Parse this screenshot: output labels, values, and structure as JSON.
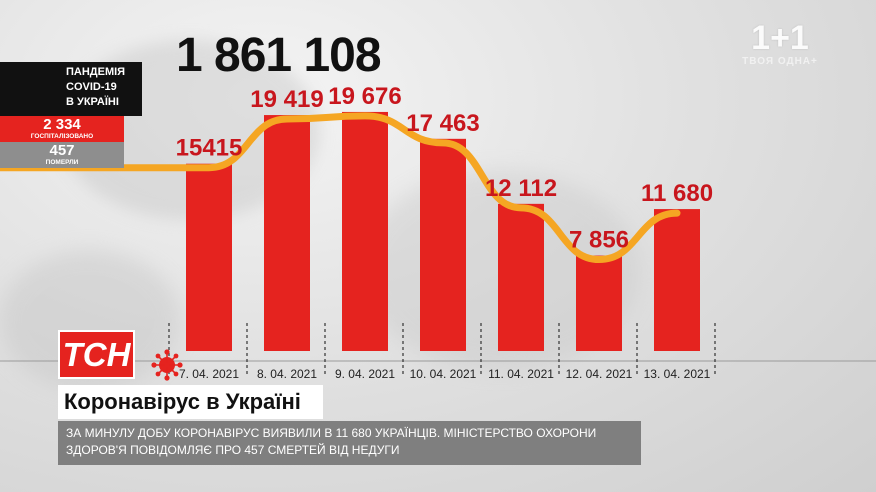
{
  "total_cases": "1 861 108",
  "channel_logo": {
    "main": "1+1",
    "sub": "ТВОЯ ОДНА+"
  },
  "panel": {
    "title_line1": "ПАНДЕМІЯ",
    "title_line2": "COVID-19",
    "title_line3": "В УКРАЇНІ",
    "hospitalized_value": "2 334",
    "hospitalized_label": "ГОСПІТАЛІЗОВАНО",
    "died_value": "457",
    "died_label": "ПОМЕРЛИ"
  },
  "news": {
    "logo": "ТСН",
    "headline": "Коронавірус в Україні",
    "caption": "ЗА МИНУЛУ ДОБУ КОРОНАВІРУС ВИЯВИЛИ В 11 680 УКРАЇНЦІВ. МІНІСТЕРСТВО ОХОРОНИ ЗДОРОВ'Я ПОВІДОМЛЯЄ ПРО 457 СМЕРТЕЙ ВІД НЕДУГИ"
  },
  "colors": {
    "bar": "#e5231f",
    "trend": "#f5a623",
    "value_label": "#c8161d",
    "panel_dark": "#111111",
    "panel_red": "#e5231f",
    "panel_gray": "#8e8e8e"
  },
  "chart_data": {
    "type": "bar",
    "categories": [
      "7. 04. 2021",
      "8. 04. 2021",
      "9. 04. 2021",
      "10. 04. 2021",
      "11. 04. 2021",
      "12. 04. 2021",
      "13. 04. 2021"
    ],
    "values": [
      15415,
      19419,
      19676,
      17463,
      12112,
      7856,
      11680
    ],
    "value_labels": [
      "15415",
      "19 419",
      "19 676",
      "17 463",
      "12 112",
      "7 856",
      "11 680"
    ],
    "overlay_line": "trend line through bar tops",
    "ylim": [
      0,
      20000
    ],
    "grid": false,
    "legend": "none"
  }
}
